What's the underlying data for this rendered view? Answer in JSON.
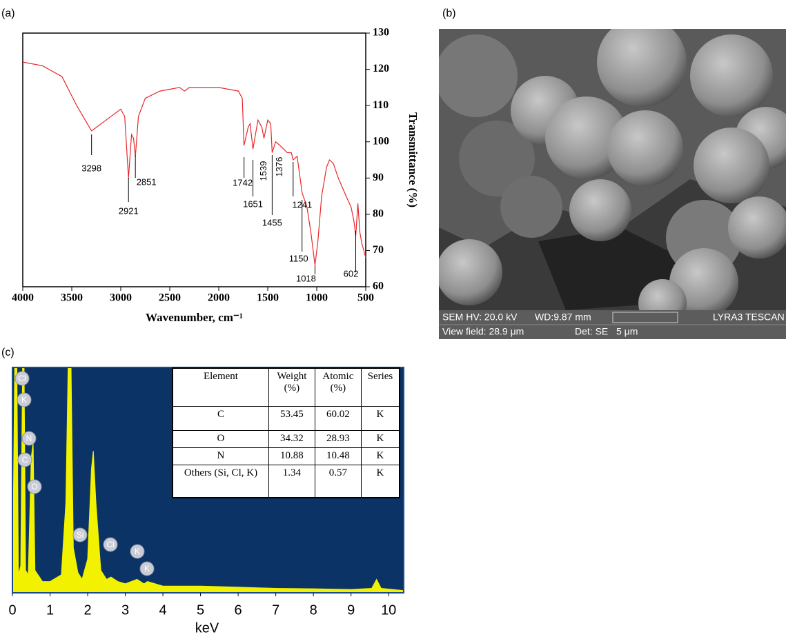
{
  "chart_data": [
    {
      "type": "line",
      "panel_label": "(a)",
      "x": [
        4000,
        3800,
        3600,
        3450,
        3298,
        3150,
        3000,
        2960,
        2921,
        2890,
        2870,
        2851,
        2820,
        2750,
        2600,
        2400,
        2350,
        2300,
        2000,
        1800,
        1760,
        1742,
        1700,
        1680,
        1651,
        1600,
        1560,
        1539,
        1500,
        1470,
        1455,
        1420,
        1376,
        1300,
        1260,
        1241,
        1200,
        1170,
        1150,
        1100,
        1060,
        1018,
        990,
        950,
        900,
        870,
        830,
        780,
        700,
        650,
        620,
        602,
        580,
        560,
        540,
        520,
        500
      ],
      "values": [
        122,
        121,
        118,
        110,
        103,
        106,
        109,
        107,
        90,
        102,
        101,
        96,
        107,
        112,
        114,
        115,
        114,
        115,
        115,
        114,
        112,
        99,
        104,
        105,
        98,
        106,
        104,
        101,
        106,
        105,
        97,
        100,
        99,
        97,
        97,
        95,
        96,
        90,
        86,
        82,
        75,
        66,
        72,
        85,
        93,
        95,
        94,
        90,
        85,
        82,
        78,
        74,
        83,
        75,
        72,
        70,
        68
      ],
      "color": "#e8262b",
      "xlim": [
        4000,
        500
      ],
      "xticks": [
        4000,
        3500,
        3000,
        2500,
        2000,
        1500,
        1000,
        500
      ],
      "ylim": [
        60,
        130
      ],
      "yticks": [
        60,
        70,
        80,
        90,
        100,
        110,
        120,
        130
      ],
      "x_label": "Wavenumber, cm⁻¹",
      "y_label": "Transmittance (%)",
      "peaks": [
        3298,
        2921,
        2851,
        1742,
        1651,
        1539,
        1455,
        1376,
        1241,
        1150,
        1018,
        602
      ]
    },
    {
      "type": "area",
      "panel_label": "(c)",
      "x": [
        0,
        0.06,
        0.12,
        0.16,
        0.22,
        0.27,
        0.31,
        0.35,
        0.42,
        0.5,
        0.55,
        0.6,
        0.8,
        1.0,
        1.3,
        1.42,
        1.48,
        1.56,
        1.62,
        1.74,
        1.85,
        2.0,
        2.1,
        2.15,
        2.22,
        2.35,
        2.5,
        2.62,
        2.8,
        3.0,
        3.31,
        3.5,
        3.59,
        4,
        5,
        6,
        7,
        8,
        9,
        9.55,
        9.68,
        9.8,
        10.4
      ],
      "values": [
        0,
        100,
        100,
        8,
        12,
        100,
        100,
        10,
        8,
        60,
        67,
        10,
        5,
        5,
        8,
        40,
        100,
        100,
        20,
        9,
        6,
        15,
        55,
        63,
        40,
        10,
        6,
        7,
        5,
        4,
        6,
        4,
        5,
        3,
        3,
        2.5,
        2,
        1.8,
        1.5,
        2,
        6,
        2,
        1
      ],
      "color": "#f2f200",
      "background": "#0c3366",
      "xlim": [
        0,
        10.4
      ],
      "xticks": [
        0,
        1,
        2,
        3,
        4,
        5,
        6,
        7,
        8,
        9,
        10
      ],
      "ylim": [
        0,
        100
      ],
      "x_label": "keV",
      "element_labels": [
        "Cl",
        "K",
        "N",
        "C",
        "O",
        "Si",
        "Cl",
        "K",
        "K"
      ]
    }
  ],
  "eds_table": {
    "header": [
      "Element",
      "Weight (%)",
      "Atomic (%)",
      "Series"
    ],
    "rows": [
      [
        "C",
        "53.45",
        "60.02",
        "K"
      ],
      [
        "O",
        "34.32",
        "28.93",
        "K"
      ],
      [
        "N",
        "10.88",
        "10.48",
        "K"
      ],
      [
        "Others (Si, Cl, K)",
        "1.34",
        "0.57",
        "K"
      ]
    ]
  },
  "sem_image": {
    "panel_label": "(b)",
    "hv": "SEM HV: 20.0 kV",
    "wd": "WD:9.87 mm",
    "vendor": "LYRA3 TESCAN",
    "view_field": "View field: 28.9 μm",
    "detector": "Det: SE",
    "scale_bar": "5 μm"
  }
}
